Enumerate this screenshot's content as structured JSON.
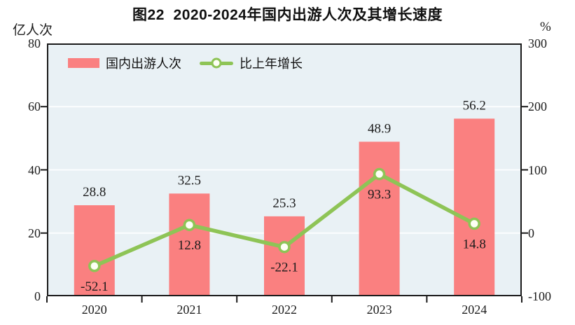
{
  "title": "图22  2020-2024年国内出游人次及其增长速度",
  "left_axis": {
    "unit": "亿人次",
    "min": 0,
    "max": 80,
    "tick_values": [
      0,
      20,
      40,
      60,
      80
    ],
    "tick_labels": [
      "0",
      "20",
      "40",
      "60",
      "80"
    ]
  },
  "right_axis": {
    "unit": "%",
    "min": -100,
    "max": 300,
    "tick_values": [
      -100,
      0,
      100,
      200,
      300
    ],
    "tick_labels": [
      "-100",
      "0",
      "100",
      "200",
      "300"
    ]
  },
  "legend": {
    "items": [
      {
        "label": "国内出游人次",
        "marker": "bar-swatch"
      },
      {
        "label": "比上年增长",
        "marker": "line-marker"
      }
    ]
  },
  "colors": {
    "bar": "#FA8080",
    "line": "#8EC456",
    "marker_fill": "#FDFFF4",
    "plot_bg": "#E9F1F5",
    "grid": "#FBFDFE",
    "axis": "#1A1A1A",
    "text": "#1C1C1C"
  },
  "chart_data": {
    "type": "bar+line",
    "title": "图22 2020-2024年国内出游人次及其增长速度",
    "categories": [
      "2020",
      "2021",
      "2022",
      "2023",
      "2024"
    ],
    "series": [
      {
        "name": "国内出游人次",
        "type": "bar",
        "axis": "left",
        "values": [
          28.8,
          32.5,
          25.3,
          48.9,
          56.2
        ],
        "labels": [
          "28.8",
          "32.5",
          "25.3",
          "48.9",
          "56.2"
        ]
      },
      {
        "name": "比上年增长",
        "type": "line",
        "axis": "right",
        "values": [
          -52.1,
          12.8,
          -22.1,
          93.3,
          14.8
        ],
        "labels": [
          "-52.1",
          "12.8",
          "-22.1",
          "93.3",
          "14.8"
        ]
      }
    ],
    "xlabel": "",
    "ylabel_left": "亿人次",
    "ylabel_right": "%",
    "left_ylim": [
      0,
      80
    ],
    "right_ylim": [
      -100,
      300
    ],
    "grid": "horizontal gridlines at left-axis 20/40/60",
    "legend_position": "top-left inside plot"
  }
}
